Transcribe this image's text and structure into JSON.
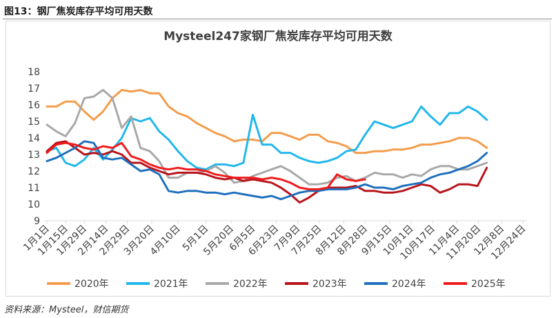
{
  "figure_label": "图13：钢厂焦炭库存平均可用天数",
  "source_note": "资料来源：Mysteel，财信期货",
  "colors": {
    "2020年": "#f39c4b",
    "2021年": "#21b7ec",
    "2022年": "#a8a8a8",
    "2023年": "#b8141b",
    "2024年": "#1f6fbd",
    "2025年": "#ee1c1c",
    "axis": "#d9d9d9",
    "text": "#404040"
  },
  "chart_data": {
    "type": "line",
    "title": "Mysteel247家钢厂焦炭库存平均可用天数",
    "xlabel": "",
    "ylabel": "",
    "ylim": [
      9,
      18
    ],
    "yticks": [
      9,
      10,
      11,
      12,
      13,
      14,
      15,
      16,
      17,
      18
    ],
    "grid": false,
    "legend_position": "bottom",
    "x_range": [
      1,
      48
    ],
    "categories": [
      "1月1日",
      "1月15日",
      "1月29日",
      "2月14日",
      "2月29日",
      "3月20日",
      "4月10日",
      "5月1日",
      "5月20日",
      "6月5日",
      "6月23日",
      "7月9日",
      "7月25日",
      "8月12日",
      "8月28日",
      "9月15日",
      "10月1日",
      "10月17日",
      "11月4日",
      "11月20日",
      "12月8日",
      "12月24日"
    ],
    "category_positions": [
      1,
      3,
      5,
      7.3,
      9.6,
      12.2,
      15,
      18,
      20.7,
      23,
      25.5,
      27.8,
      30.1,
      32.7,
      35,
      37.6,
      39.9,
      42.2,
      44.8,
      47.1,
      49.6,
      51.9
    ],
    "series": [
      {
        "name": "2020年",
        "x": [
          1,
          2,
          3,
          4,
          5,
          6,
          7,
          8,
          9,
          10,
          11,
          12,
          13,
          14,
          15,
          16,
          17,
          18,
          19,
          20,
          21,
          22,
          23,
          24,
          25,
          26,
          27,
          28,
          29,
          30,
          31,
          32,
          33,
          34,
          35,
          36,
          37,
          38,
          39,
          40,
          41,
          42,
          43,
          44,
          45,
          46,
          47,
          48
        ],
        "values": [
          15.9,
          15.9,
          16.2,
          16.2,
          15.6,
          15.1,
          15.6,
          16.4,
          16.9,
          16.8,
          16.9,
          16.7,
          16.7,
          15.9,
          15.5,
          15.3,
          14.9,
          14.6,
          14.3,
          14.1,
          13.8,
          13.9,
          13.9,
          13.8,
          14.3,
          14.3,
          14.1,
          13.9,
          14.2,
          14.2,
          13.8,
          13.7,
          13.5,
          13.1,
          13.1,
          13.2,
          13.2,
          13.3,
          13.3,
          13.4,
          13.6,
          13.6,
          13.7,
          13.8,
          14.0,
          14.0,
          13.8,
          13.4
        ]
      },
      {
        "name": "2021年",
        "x": [
          1,
          2,
          3,
          4,
          5,
          6,
          7,
          8,
          9,
          10,
          11,
          12,
          13,
          14,
          15,
          16,
          17,
          18,
          19,
          20,
          21,
          22,
          23,
          24,
          25,
          26,
          27,
          28,
          29,
          30,
          31,
          32,
          33,
          34,
          35,
          36,
          37,
          38,
          39,
          40,
          41,
          42,
          43,
          44,
          45,
          46,
          47,
          48
        ],
        "values": [
          13.2,
          13.4,
          12.5,
          12.3,
          12.7,
          13.4,
          12.7,
          13.3,
          14.0,
          15.2,
          15.0,
          15.2,
          14.4,
          13.9,
          13.2,
          12.6,
          12.2,
          12.1,
          12.4,
          12.4,
          12.3,
          12.5,
          15.4,
          13.6,
          13.6,
          13.1,
          13.1,
          12.8,
          12.6,
          12.5,
          12.6,
          12.8,
          13.2,
          13.3,
          14.2,
          15.0,
          14.8,
          14.6,
          14.8,
          15.0,
          15.9,
          15.3,
          14.8,
          15.5,
          15.5,
          15.9,
          15.6,
          15.1
        ]
      },
      {
        "name": "2022年",
        "x": [
          1,
          2,
          3,
          4,
          5,
          6,
          7,
          8,
          9,
          10,
          11,
          12,
          13,
          14,
          15,
          16,
          17,
          18,
          19,
          20,
          21,
          22,
          23,
          24,
          25,
          26,
          27,
          28,
          29,
          30,
          31,
          32,
          33,
          34,
          35,
          36,
          37,
          38,
          39,
          40,
          41,
          42,
          43,
          44,
          45,
          46,
          47,
          48
        ],
        "values": [
          14.8,
          14.4,
          14.1,
          14.9,
          16.4,
          16.5,
          16.9,
          16.4,
          14.6,
          15.3,
          13.4,
          13.2,
          12.6,
          11.6,
          11.6,
          11.9,
          11.9,
          12.0,
          12.3,
          11.9,
          11.3,
          11.4,
          11.7,
          11.9,
          12.1,
          12.3,
          12.0,
          11.6,
          11.2,
          11.2,
          11.3,
          11.6,
          11.7,
          11.4,
          11.6,
          11.9,
          11.8,
          11.8,
          11.6,
          11.8,
          11.7,
          12.1,
          12.3,
          12.3,
          12.1,
          12.1,
          12.3,
          12.5
        ]
      },
      {
        "name": "2023年",
        "x": [
          1,
          2,
          3,
          4,
          5,
          6,
          7,
          8,
          9,
          10,
          11,
          12,
          13,
          14,
          15,
          16,
          17,
          18,
          19,
          20,
          21,
          22,
          23,
          24,
          25,
          26,
          27,
          28,
          29,
          30,
          31,
          32,
          33,
          34,
          35,
          36,
          37,
          38,
          39,
          40,
          41,
          42,
          43,
          44,
          45,
          46,
          47,
          48
        ],
        "values": [
          13.2,
          13.7,
          13.8,
          13.4,
          13.0,
          13.1,
          13.0,
          13.2,
          13.0,
          12.5,
          12.5,
          12.2,
          12.0,
          11.8,
          11.9,
          11.9,
          11.9,
          11.8,
          11.6,
          11.5,
          11.6,
          11.4,
          11.5,
          11.4,
          11.3,
          11.0,
          10.6,
          10.1,
          10.4,
          10.8,
          11.0,
          11.0,
          11.0,
          11.1,
          10.8,
          10.8,
          10.7,
          10.7,
          10.8,
          11.0,
          11.2,
          11.1,
          10.7,
          10.9,
          11.2,
          11.2,
          11.1,
          12.2
        ]
      },
      {
        "name": "2024年",
        "x": [
          1,
          2,
          3,
          4,
          5,
          6,
          7,
          8,
          9,
          10,
          11,
          12,
          13,
          14,
          15,
          16,
          17,
          18,
          19,
          20,
          21,
          22,
          23,
          24,
          25,
          26,
          27,
          28,
          29,
          30,
          31,
          32,
          33,
          34,
          35,
          36,
          37,
          38,
          39,
          40,
          41,
          42,
          43,
          44,
          45,
          46,
          47,
          48
        ],
        "values": [
          12.6,
          12.8,
          13.1,
          13.4,
          13.8,
          13.7,
          12.8,
          12.7,
          12.8,
          12.4,
          12.0,
          12.1,
          11.8,
          10.8,
          10.7,
          10.8,
          10.8,
          10.7,
          10.7,
          10.6,
          10.7,
          10.6,
          10.5,
          10.4,
          10.5,
          10.3,
          10.5,
          10.7,
          10.8,
          10.8,
          10.9,
          10.9,
          10.9,
          11.0,
          11.2,
          11.0,
          11.0,
          10.9,
          11.1,
          11.2,
          11.3,
          11.6,
          11.8,
          11.9,
          12.1,
          12.3,
          12.6,
          13.1
        ]
      },
      {
        "name": "2025年",
        "x": [
          1,
          2,
          3,
          4,
          5,
          6,
          7,
          8,
          9,
          10,
          11,
          12,
          13,
          14,
          15,
          16,
          17,
          18,
          19,
          20,
          21,
          22,
          23,
          24,
          25,
          26,
          27,
          28,
          29,
          30,
          31,
          32,
          33,
          34,
          35
        ],
        "values": [
          13.1,
          13.6,
          13.7,
          13.6,
          13.4,
          13.3,
          13.5,
          13.4,
          13.7,
          12.9,
          12.7,
          12.4,
          12.2,
          12.1,
          12.2,
          12.1,
          12.1,
          12.0,
          11.8,
          11.7,
          11.6,
          11.6,
          11.6,
          11.5,
          11.6,
          11.5,
          11.3,
          11.0,
          10.9,
          10.9,
          11.0,
          11.8,
          11.5,
          11.4,
          11.5
        ]
      }
    ]
  }
}
